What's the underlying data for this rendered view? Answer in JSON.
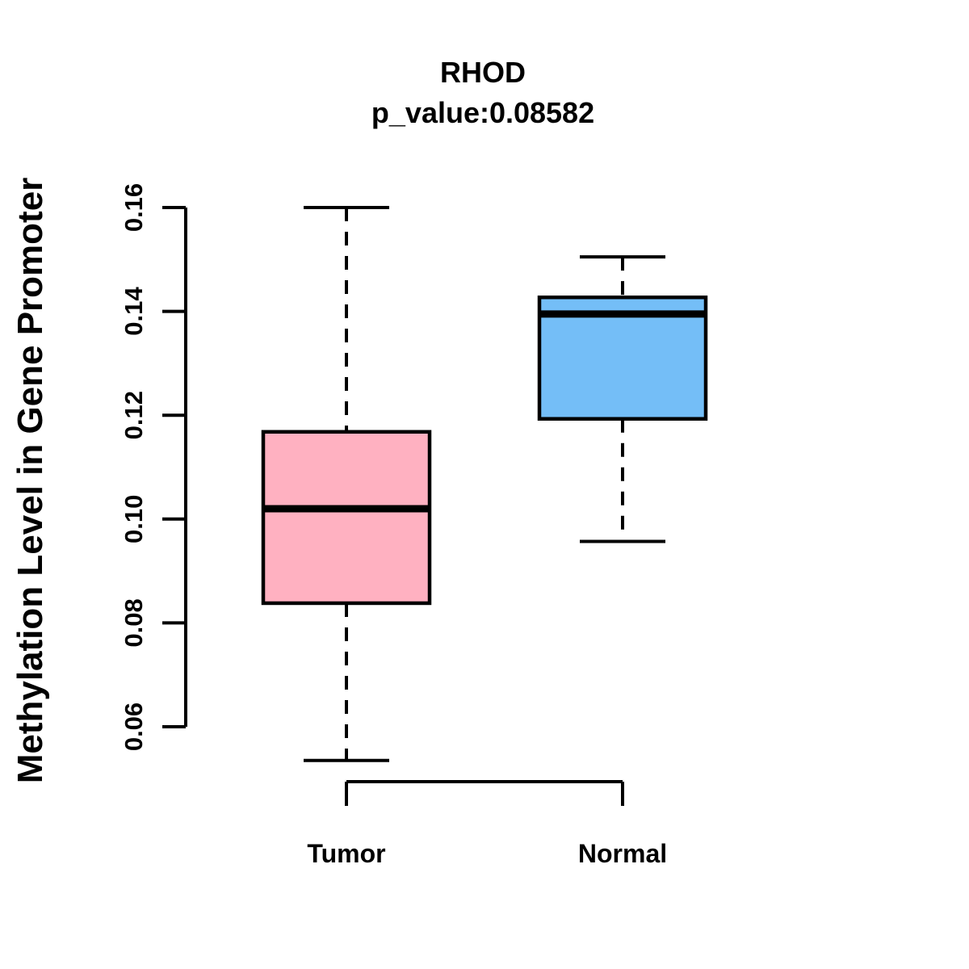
{
  "chart_data": {
    "type": "boxplot",
    "title": "RHOD",
    "subtitle": "p_value:0.08582",
    "ylabel": "Methylation Level in Gene Promoter",
    "xlabel": "",
    "ylim": [
      0.06,
      0.16
    ],
    "ytick_labels": [
      "0.06",
      "0.08",
      "0.10",
      "0.12",
      "0.14",
      "0.16"
    ],
    "ytick_values": [
      0.06,
      0.08,
      0.1,
      0.12,
      0.14,
      0.16
    ],
    "grid": "off",
    "legend": "none",
    "groups": [
      {
        "label": "Tumor",
        "fill_color": "#FFB1C1",
        "whisker_low": 0.0535,
        "q1": 0.0838,
        "median": 0.102,
        "q3": 0.1168,
        "whisker_high": 0.16
      },
      {
        "label": "Normal",
        "fill_color": "#74BEF7",
        "whisker_low": 0.0957,
        "q1": 0.1193,
        "median": 0.1395,
        "q3": 0.1427,
        "whisker_high": 0.1505
      }
    ],
    "colors": {
      "stroke": "#000000",
      "background": "#ffffff"
    }
  }
}
